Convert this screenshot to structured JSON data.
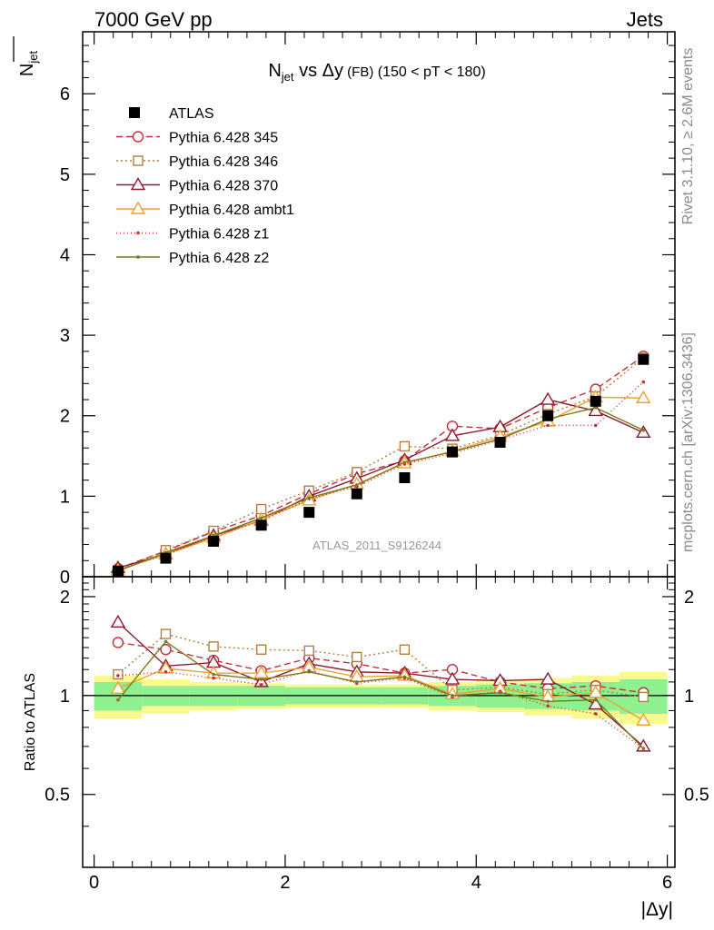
{
  "header": {
    "left": "7000 GeV pp",
    "right": "Jets"
  },
  "side_labels": {
    "rivet": "Rivet 3.1.10, ≥ 2.6M events",
    "mcplots": "mcplots.cern.ch [arXiv:1306.3436]"
  },
  "watermark": "ATLAS_2011_S9126244",
  "colors": {
    "band_inner": "#8ff08f",
    "band_outer": "#f9f98f"
  },
  "chart_data": {
    "type": "scatter",
    "title_parts": {
      "main": "N",
      "sub": "jet",
      "vs": " vs Δy",
      "fb": " (FB)",
      "range": " (150 < pT < 180)"
    },
    "xlabel": "|Δy|",
    "ylabel_top": {
      "main": "N",
      "sub": "jet"
    },
    "ylabel_bottom": "Ratio to ATLAS",
    "xlim": [
      -0.12,
      6.08
    ],
    "ylim_top": [
      0,
      6.77
    ],
    "ylim_bottom": [
      0.3,
      2.3
    ],
    "x_ticks": [
      0,
      2,
      4,
      6
    ],
    "y_ticks_top": [
      0,
      1,
      2,
      3,
      4,
      5,
      6
    ],
    "y_ticks_bottom": [
      0.5,
      1,
      2
    ],
    "bin_edges": [
      0,
      0.5,
      1.0,
      1.5,
      2.0,
      2.5,
      3.0,
      3.5,
      4.0,
      4.5,
      5.0,
      5.5,
      6.0
    ],
    "x": [
      0.25,
      0.75,
      1.25,
      1.75,
      2.25,
      2.75,
      3.25,
      3.75,
      4.25,
      4.75,
      5.25,
      5.75
    ],
    "data": {
      "name": "ATLAS",
      "values": [
        0.07,
        0.23,
        0.44,
        0.64,
        0.8,
        1.03,
        1.23,
        1.55,
        1.67,
        2.0,
        2.18,
        2.7
      ]
    },
    "band_inner_halfwidth": [
      0.1,
      0.07,
      0.07,
      0.07,
      0.06,
      0.06,
      0.06,
      0.07,
      0.08,
      0.09,
      0.1,
      0.12
    ],
    "band_outer_halfwidth": [
      0.15,
      0.12,
      0.1,
      0.09,
      0.08,
      0.08,
      0.08,
      0.1,
      0.11,
      0.13,
      0.15,
      0.18
    ],
    "series": [
      {
        "name": "Pythia 6.428 345",
        "color": "#c0303a",
        "dash": "7,4",
        "marker": "circle",
        "values": [
          0.1,
          0.32,
          0.56,
          0.76,
          1.03,
          1.28,
          1.44,
          1.87,
          1.84,
          2.1,
          2.33,
          2.74
        ],
        "ratio": [
          1.45,
          1.38,
          1.28,
          1.19,
          1.3,
          1.25,
          1.17,
          1.2,
          1.1,
          1.05,
          1.07,
          1.02
        ]
      },
      {
        "name": "Pythia 6.428 346",
        "color": "#b08040",
        "dash": "2,3",
        "marker": "square",
        "values": [
          0.08,
          0.33,
          0.57,
          0.84,
          1.07,
          1.3,
          1.62,
          1.59,
          1.76,
          2.02,
          2.24,
          2.72
        ],
        "ratio": [
          1.16,
          1.54,
          1.41,
          1.38,
          1.37,
          1.31,
          1.38,
          1.04,
          1.06,
          1.01,
          1.04,
          0.99
        ]
      },
      {
        "name": "Pythia 6.428 370",
        "color": "#8c1a30",
        "dash": "",
        "marker": "triangle",
        "values": [
          0.11,
          0.28,
          0.51,
          0.7,
          1.0,
          1.22,
          1.45,
          1.75,
          1.86,
          2.2,
          2.06,
          1.79
        ],
        "ratio": [
          1.67,
          1.23,
          1.26,
          1.1,
          1.25,
          1.18,
          1.17,
          1.12,
          1.11,
          1.12,
          0.94,
          0.7
        ]
      },
      {
        "name": "Pythia 6.428 ambt1",
        "color": "#f0a030",
        "dash": "",
        "marker": "triangle",
        "values": [
          0.08,
          0.28,
          0.48,
          0.71,
          0.95,
          1.15,
          1.41,
          1.56,
          1.74,
          1.93,
          2.23,
          2.22
        ],
        "ratio": [
          1.05,
          1.21,
          1.17,
          1.17,
          1.22,
          1.14,
          1.15,
          1.01,
          1.05,
          0.99,
          1.02,
          0.84
        ]
      },
      {
        "name": "Pythia 6.428 z1",
        "color": "#d03030",
        "dash": "1,3",
        "marker": "dot",
        "values": [
          0.09,
          0.27,
          0.5,
          0.69,
          0.97,
          1.12,
          1.4,
          1.53,
          1.7,
          1.88,
          1.88,
          2.42
        ],
        "ratio": [
          1.15,
          1.18,
          1.13,
          1.08,
          1.19,
          1.09,
          1.13,
          0.99,
          1.03,
          0.93,
          0.88,
          0.69
        ]
      },
      {
        "name": "Pythia 6.428 z2",
        "color": "#7a7a1e",
        "dash": "",
        "marker": "dot",
        "values": [
          0.07,
          0.3,
          0.51,
          0.73,
          0.98,
          1.14,
          1.42,
          1.55,
          1.71,
          1.96,
          2.1,
          1.82
        ],
        "ratio": [
          0.97,
          1.46,
          1.16,
          1.12,
          1.18,
          1.1,
          1.14,
          1.0,
          1.02,
          0.96,
          0.97,
          0.69
        ]
      }
    ]
  }
}
